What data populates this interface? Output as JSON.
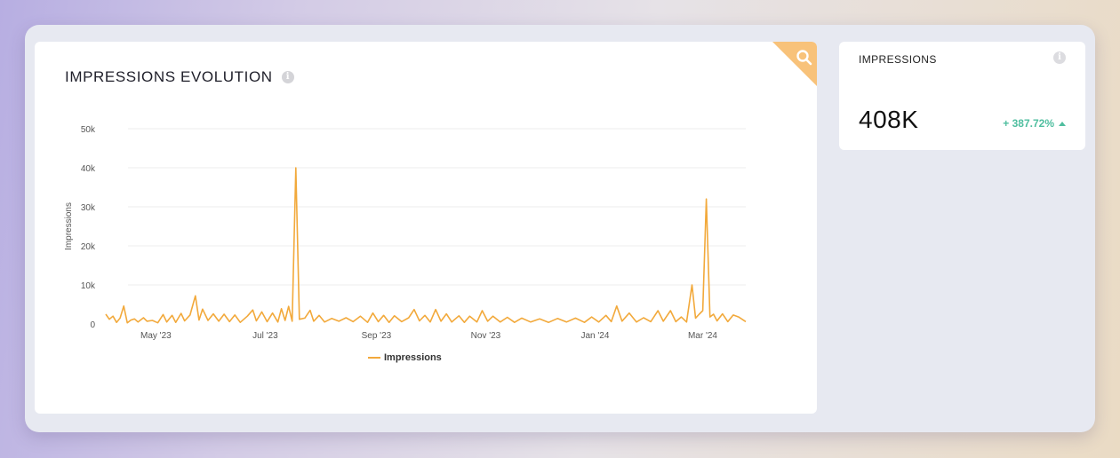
{
  "chart_panel": {
    "title": "IMPRESSIONS EVOLUTION",
    "info_icon": "info-icon",
    "zoom_icon": "search-icon",
    "accent_color": "#f8c27a"
  },
  "kpi": {
    "title": "IMPRESSIONS",
    "value": "408K",
    "change": "+ 387.72%",
    "change_color": "#4fbe9f",
    "trend_icon": "triangle-up-icon"
  },
  "chart_data": {
    "type": "line",
    "title": "",
    "xlabel": "",
    "ylabel": "Impressions",
    "ylim": [
      0,
      50000
    ],
    "y_ticks": [
      "0",
      "10k",
      "20k",
      "30k",
      "40k",
      "50k"
    ],
    "x_ticks": [
      "May '23",
      "Jul '23",
      "Sep '23",
      "Nov '23",
      "Jan '24",
      "Mar '24"
    ],
    "x_range": [
      "2023-04-10",
      "2024-04-01"
    ],
    "grid": true,
    "legend": "bottom-center",
    "series": [
      {
        "name": "Impressions",
        "color": "#f2a93b",
        "points": [
          [
            "2023-04-10",
            2500
          ],
          [
            "2023-04-12",
            1200
          ],
          [
            "2023-04-14",
            2000
          ],
          [
            "2023-04-16",
            400
          ],
          [
            "2023-04-18",
            1500
          ],
          [
            "2023-04-20",
            4600
          ],
          [
            "2023-04-22",
            300
          ],
          [
            "2023-04-24",
            1000
          ],
          [
            "2023-04-26",
            1300
          ],
          [
            "2023-04-28",
            500
          ],
          [
            "2023-05-01",
            1600
          ],
          [
            "2023-05-03",
            700
          ],
          [
            "2023-05-06",
            900
          ],
          [
            "2023-05-09",
            300
          ],
          [
            "2023-05-12",
            2400
          ],
          [
            "2023-05-14",
            500
          ],
          [
            "2023-05-17",
            2200
          ],
          [
            "2023-05-19",
            400
          ],
          [
            "2023-05-22",
            2700
          ],
          [
            "2023-05-24",
            800
          ],
          [
            "2023-05-27",
            2300
          ],
          [
            "2023-05-30",
            7200
          ],
          [
            "2023-06-01",
            1000
          ],
          [
            "2023-06-03",
            3800
          ],
          [
            "2023-06-06",
            900
          ],
          [
            "2023-06-09",
            2600
          ],
          [
            "2023-06-12",
            700
          ],
          [
            "2023-06-15",
            2500
          ],
          [
            "2023-06-18",
            600
          ],
          [
            "2023-06-21",
            2300
          ],
          [
            "2023-06-24",
            400
          ],
          [
            "2023-06-28",
            2000
          ],
          [
            "2023-07-01",
            3600
          ],
          [
            "2023-07-03",
            800
          ],
          [
            "2023-07-06",
            3100
          ],
          [
            "2023-07-09",
            600
          ],
          [
            "2023-07-12",
            2800
          ],
          [
            "2023-07-15",
            500
          ],
          [
            "2023-07-17",
            3900
          ],
          [
            "2023-07-19",
            900
          ],
          [
            "2023-07-21",
            4500
          ],
          [
            "2023-07-23",
            700
          ],
          [
            "2023-07-25",
            40000
          ],
          [
            "2023-07-27",
            1200
          ],
          [
            "2023-07-30",
            1500
          ],
          [
            "2023-08-02",
            3500
          ],
          [
            "2023-08-04",
            700
          ],
          [
            "2023-08-07",
            2200
          ],
          [
            "2023-08-10",
            500
          ],
          [
            "2023-08-14",
            1400
          ],
          [
            "2023-08-18",
            700
          ],
          [
            "2023-08-22",
            1600
          ],
          [
            "2023-08-26",
            600
          ],
          [
            "2023-08-30",
            2000
          ],
          [
            "2023-09-03",
            400
          ],
          [
            "2023-09-06",
            2800
          ],
          [
            "2023-09-09",
            600
          ],
          [
            "2023-09-12",
            2200
          ],
          [
            "2023-09-15",
            400
          ],
          [
            "2023-09-18",
            2100
          ],
          [
            "2023-09-22",
            600
          ],
          [
            "2023-09-26",
            1600
          ],
          [
            "2023-09-29",
            3700
          ],
          [
            "2023-10-02",
            800
          ],
          [
            "2023-10-05",
            2200
          ],
          [
            "2023-10-08",
            500
          ],
          [
            "2023-10-11",
            3700
          ],
          [
            "2023-10-14",
            700
          ],
          [
            "2023-10-17",
            2600
          ],
          [
            "2023-10-20",
            500
          ],
          [
            "2023-10-24",
            2100
          ],
          [
            "2023-10-27",
            400
          ],
          [
            "2023-10-30",
            2000
          ],
          [
            "2023-11-03",
            500
          ],
          [
            "2023-11-06",
            3400
          ],
          [
            "2023-11-09",
            700
          ],
          [
            "2023-11-12",
            2000
          ],
          [
            "2023-11-16",
            500
          ],
          [
            "2023-11-20",
            1700
          ],
          [
            "2023-11-24",
            400
          ],
          [
            "2023-11-28",
            1500
          ],
          [
            "2023-12-03",
            500
          ],
          [
            "2023-12-08",
            1300
          ],
          [
            "2023-12-13",
            400
          ],
          [
            "2023-12-18",
            1400
          ],
          [
            "2023-12-23",
            500
          ],
          [
            "2023-12-28",
            1500
          ],
          [
            "2024-01-02",
            400
          ],
          [
            "2024-01-06",
            1800
          ],
          [
            "2024-01-10",
            500
          ],
          [
            "2024-01-14",
            2200
          ],
          [
            "2024-01-17",
            600
          ],
          [
            "2024-01-20",
            4600
          ],
          [
            "2024-01-23",
            700
          ],
          [
            "2024-01-27",
            2800
          ],
          [
            "2024-01-31",
            500
          ],
          [
            "2024-02-04",
            1600
          ],
          [
            "2024-02-08",
            600
          ],
          [
            "2024-02-12",
            3400
          ],
          [
            "2024-02-15",
            700
          ],
          [
            "2024-02-19",
            3400
          ],
          [
            "2024-02-22",
            600
          ],
          [
            "2024-02-25",
            1800
          ],
          [
            "2024-02-28",
            500
          ],
          [
            "2024-03-02",
            10000
          ],
          [
            "2024-03-04",
            1500
          ],
          [
            "2024-03-06",
            2500
          ],
          [
            "2024-03-08",
            3400
          ],
          [
            "2024-03-10",
            32000
          ],
          [
            "2024-03-12",
            1800
          ],
          [
            "2024-03-14",
            2500
          ],
          [
            "2024-03-16",
            800
          ],
          [
            "2024-03-19",
            2600
          ],
          [
            "2024-03-22",
            600
          ],
          [
            "2024-03-25",
            2300
          ],
          [
            "2024-03-28",
            1800
          ],
          [
            "2024-04-01",
            600
          ]
        ]
      }
    ]
  }
}
